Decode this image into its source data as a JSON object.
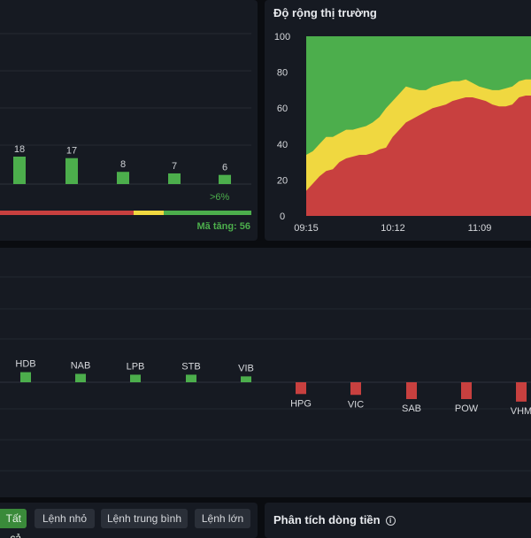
{
  "distribution": {
    "bars": [
      {
        "value": 18,
        "label": "18"
      },
      {
        "value": 17,
        "label": "17"
      },
      {
        "value": 8,
        "label": "8"
      },
      {
        "value": 7,
        "label": "7"
      },
      {
        "value": 6,
        "label": "6"
      }
    ],
    "bucket_label": ">6%",
    "summary_text": "Mã tăng: 56",
    "ratio_strip": [
      {
        "color": "#c8403f",
        "fraction": 0.54
      },
      {
        "color": "#f0d840",
        "fraction": 0.12
      },
      {
        "color": "#4cae4c",
        "fraction": 0.34
      }
    ]
  },
  "breadth": {
    "title": "Độ rộng thị trường",
    "chart_data": {
      "type": "area",
      "x_ticks": [
        "09:15",
        "10:12",
        "11:09"
      ],
      "y_ticks": [
        "100",
        "80",
        "60",
        "40",
        "20",
        "0"
      ],
      "ylim": [
        0,
        100
      ],
      "colors": {
        "decliners": "#c8403f",
        "unchanged": "#f0d840",
        "advancers": "#4cae4c"
      },
      "red_top": [
        14,
        18,
        22,
        25,
        26,
        30,
        32,
        33,
        34,
        34,
        35,
        37,
        38,
        44,
        48,
        52,
        54,
        56,
        58,
        60,
        61,
        62,
        64,
        65,
        66,
        66,
        65,
        64,
        62,
        61,
        61,
        62,
        66,
        67,
        67,
        67
      ],
      "yellow_top": [
        34,
        36,
        40,
        44,
        44,
        46,
        48,
        48,
        49,
        50,
        52,
        55,
        60,
        64,
        68,
        72,
        71,
        70,
        70,
        72,
        73,
        74,
        75,
        75,
        76,
        74,
        72,
        71,
        70,
        70,
        71,
        72,
        75,
        76,
        76,
        76
      ]
    }
  },
  "impact": {
    "chart_data": {
      "type": "bar",
      "categories": [
        "HDB",
        "NAB",
        "LPB",
        "STB",
        "VIB",
        "HPG",
        "VIC",
        "SAB",
        "POW",
        "VHM"
      ],
      "values": [
        1.2,
        1.0,
        0.9,
        0.9,
        0.7,
        -1.4,
        -1.5,
        -2.0,
        -2.0,
        -2.3
      ],
      "positive_color": "#4cae4c",
      "negative_color": "#c8403f"
    }
  },
  "filters": {
    "buttons": [
      "Tất cả",
      "Lệnh nhỏ",
      "Lệnh trung bình",
      "Lệnh lớn"
    ]
  },
  "cashflow": {
    "title": "Phân tích dòng tiền",
    "info_icon": "info-icon"
  }
}
